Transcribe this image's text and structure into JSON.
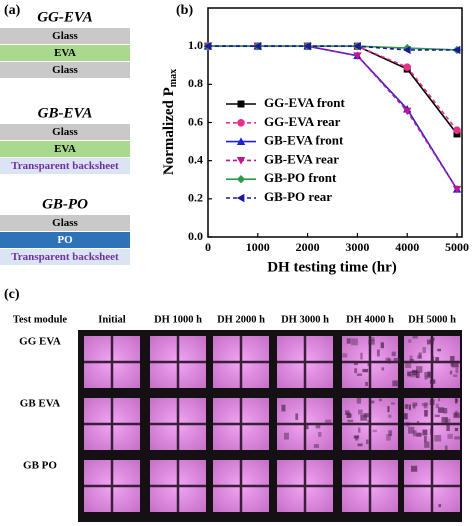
{
  "panel_a": {
    "label": "(a)",
    "modules": [
      {
        "name": "GG-EVA",
        "layers": [
          "Glass",
          "EVA",
          "Glass"
        ]
      },
      {
        "name": "GB-EVA",
        "layers": [
          "Glass",
          "EVA",
          "Transparent backsheet"
        ]
      },
      {
        "name": "GB-PO",
        "layers": [
          "Glass",
          "PO",
          "Transparent backsheet"
        ]
      }
    ]
  },
  "chart_data": {
    "type": "line",
    "panel_label": "(b)",
    "x_label": "DH testing time (hr)",
    "y_label": "Normalized P",
    "y_label_sub": "max",
    "x": [
      0,
      1000,
      2000,
      3000,
      4000,
      5000
    ],
    "series": [
      {
        "name": "GG-EVA front",
        "color": "#000000",
        "marker": "square",
        "line_style": "solid",
        "values": [
          1.0,
          1.0,
          1.0,
          1.0,
          0.88,
          0.54
        ]
      },
      {
        "name": "GG-EVA rear",
        "color": "#e6308a",
        "marker": "circle",
        "line_style": "dashed",
        "values": [
          1.0,
          1.0,
          1.0,
          1.0,
          0.89,
          0.56
        ]
      },
      {
        "name": "GB-EVA front",
        "color": "#2020d8",
        "marker": "triangle-up",
        "line_style": "solid",
        "values": [
          1.0,
          1.0,
          1.0,
          0.95,
          0.67,
          0.25
        ]
      },
      {
        "name": "GB-EVA rear",
        "color": "#c0188c",
        "marker": "triangle-down",
        "line_style": "dashed",
        "values": [
          1.0,
          1.0,
          1.0,
          0.95,
          0.66,
          0.25
        ]
      },
      {
        "name": "GB-PO front",
        "color": "#2e9b4a",
        "marker": "diamond",
        "line_style": "solid",
        "values": [
          1.0,
          1.0,
          1.0,
          1.0,
          0.99,
          0.98
        ]
      },
      {
        "name": "GB-PO rear",
        "color": "#1a1a9b",
        "marker": "triangle-left",
        "line_style": "dashed",
        "values": [
          1.0,
          1.0,
          1.0,
          1.0,
          0.98,
          0.98
        ]
      }
    ],
    "xlim": [
      0,
      5100
    ],
    "xticks": [
      0,
      1000,
      2000,
      3000,
      4000,
      5000
    ],
    "ylim": [
      0,
      1.2
    ],
    "yticks": [
      {
        "value": 0,
        "label": "0.0"
      },
      0.2,
      0.4,
      0.6,
      0.8,
      {
        "value": 1,
        "label": "1.0"
      }
    ],
    "grid": false,
    "legend": "left"
  },
  "panel_c": {
    "label": "(c)",
    "header": [
      "Test module",
      "Initial",
      "DH 1000 h",
      "DH 2000 h",
      "DH 3000 h",
      "DH 4000 h",
      "DH 5000 h"
    ],
    "rows": [
      "GG EVA",
      "GB EVA",
      "GB PO"
    ]
  }
}
